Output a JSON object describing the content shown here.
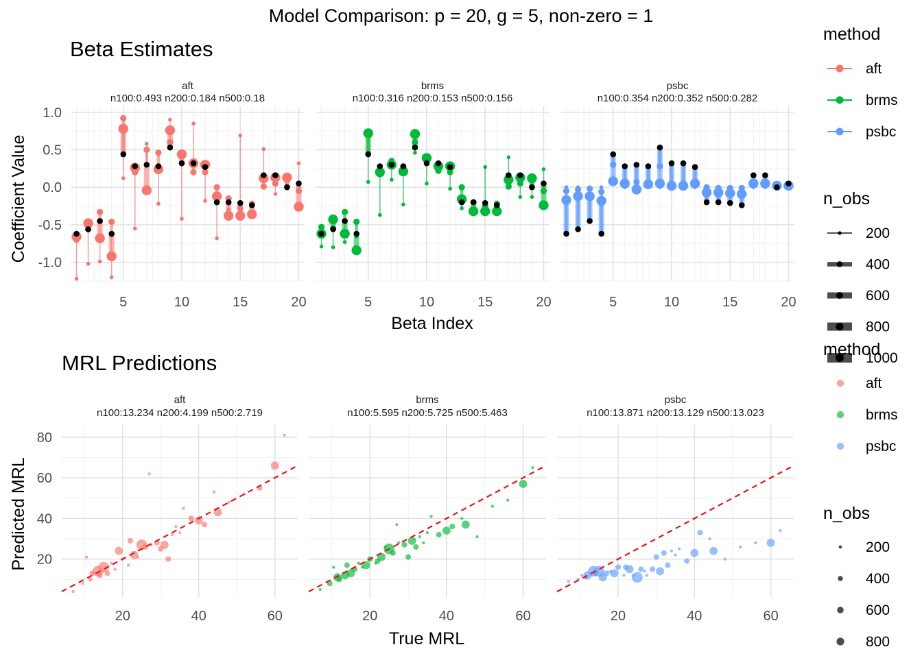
{
  "title": "Model Comparison: p = 20, g = 5, non-zero = 1",
  "colors": {
    "aft": "#F8766D",
    "brms": "#00BA38",
    "psbc": "#619CFF",
    "truth": "#000000",
    "identity": "#EE1111"
  },
  "legends": {
    "method_title": "method",
    "nobs_title": "n_obs",
    "methods": [
      "aft",
      "brms",
      "psbc"
    ],
    "nobs_line": [
      "200",
      "400",
      "600",
      "800",
      "1000"
    ],
    "nobs_point": [
      "200",
      "400",
      "600",
      "800"
    ]
  },
  "chart_data": [
    {
      "type": "scatter",
      "subtitle": "Beta Estimates",
      "xlabel": "Beta Index",
      "ylabel": "Coefficient Value",
      "xlim": [
        0.5,
        20.5
      ],
      "ylim": [
        -1.25,
        1.08
      ],
      "x_ticks": [
        "5",
        "10",
        "15",
        "20"
      ],
      "y_ticks": [
        "1.0",
        "0.5",
        "0.0",
        "-0.5",
        "-1.0"
      ],
      "grid": true,
      "true_beta": [
        -0.62,
        -0.56,
        -0.45,
        -0.62,
        0.44,
        0.28,
        0.3,
        0.28,
        0.53,
        0.32,
        0.32,
        0.27,
        -0.2,
        -0.2,
        -0.21,
        -0.24,
        0.16,
        0.16,
        0.0,
        0.05
      ],
      "panels": [
        {
          "method": "aft",
          "strip_title": "aft",
          "strip_stats": "n100:0.493 n200:0.184 n500:0.18",
          "estimates": {
            "n100": [
              -1.22,
              -1.02,
              -0.99,
              -1.2,
              0.12,
              -0.55,
              0.58,
              -0.22,
              0.9,
              -0.42,
              0.85,
              -0.18,
              -0.68,
              -0.3,
              0.69,
              -0.25,
              0.51,
              -0.09,
              0.02,
              0.32
            ],
            "n200": [
              -0.7,
              -0.56,
              -0.33,
              -0.46,
              0.92,
              0.2,
              0.5,
              0.46,
              0.6,
              0.45,
              0.2,
              0.2,
              0.0,
              -0.15,
              -0.28,
              -0.22,
              0.01,
              0.05,
              0.14,
              -0.05
            ],
            "n500": [
              -0.66,
              -0.48,
              -0.68,
              -0.92,
              0.78,
              0.26,
              -0.04,
              0.24,
              0.76,
              0.44,
              0.32,
              0.3,
              -0.12,
              -0.38,
              -0.38,
              -0.36,
              0.12,
              0.13,
              0.13,
              -0.26
            ]
          }
        },
        {
          "method": "brms",
          "strip_title": "brms",
          "strip_stats": "n100:0.316 n200:0.153 n500:0.156",
          "estimates": {
            "n100": [
              -0.79,
              -0.8,
              -0.73,
              -0.66,
              0.07,
              -0.37,
              0.1,
              -0.23,
              0.46,
              0.05,
              0.31,
              -0.02,
              -0.28,
              -0.36,
              0.27,
              -0.24,
              0.4,
              -0.13,
              -0.13,
              0.24
            ],
            "n200": [
              -0.53,
              -0.55,
              -0.33,
              -0.46,
              0.72,
              0.2,
              0.35,
              0.27,
              0.6,
              0.4,
              0.22,
              0.2,
              0.0,
              -0.2,
              -0.25,
              -0.22,
              0.01,
              0.05,
              0.14,
              -0.05
            ],
            "n500": [
              -0.62,
              -0.43,
              -0.62,
              -0.84,
              0.72,
              0.2,
              0.3,
              0.21,
              0.71,
              0.39,
              0.28,
              0.28,
              -0.16,
              -0.32,
              -0.32,
              -0.32,
              0.1,
              0.13,
              0.12,
              -0.24
            ]
          }
        },
        {
          "method": "psbc",
          "strip_title": "psbc",
          "strip_stats": "n100:0.354 n200:0.352 n500:0.282",
          "estimates": {
            "n100": [
              0.0,
              0.0,
              0.0,
              0.0,
              0.05,
              0.0,
              0.0,
              0.0,
              0.0,
              0.0,
              0.0,
              0.0,
              0.0,
              0.0,
              0.0,
              0.0,
              0.0,
              0.0,
              0.0,
              0.0
            ],
            "n200": [
              -0.05,
              -0.03,
              -0.02,
              -0.06,
              0.3,
              0.04,
              0.07,
              0.05,
              0.28,
              0.05,
              0.05,
              0.04,
              0.0,
              -0.01,
              -0.01,
              -0.01,
              0.07,
              0.05,
              0.02,
              0.04
            ],
            "n500": [
              -0.17,
              -0.12,
              -0.12,
              -0.18,
              0.08,
              0.05,
              -0.03,
              0.04,
              0.05,
              0.02,
              0.02,
              0.05,
              -0.07,
              -0.07,
              -0.08,
              -0.09,
              0.05,
              0.05,
              0.02,
              0.02
            ]
          }
        }
      ]
    },
    {
      "type": "scatter",
      "subtitle": "MRL Predictions",
      "xlabel": "True MRL",
      "ylabel": "Predicted MRL",
      "xlim": [
        4,
        66
      ],
      "ylim": [
        1,
        86
      ],
      "x_ticks": [
        "20",
        "40",
        "60"
      ],
      "y_ticks": [
        "80",
        "60",
        "40",
        "20"
      ],
      "grid": true,
      "reference_line": "y = x (dashed)",
      "true_mrl": [
        7,
        9.5,
        11.5,
        12,
        13.5,
        15,
        16,
        17,
        19,
        20,
        21.5,
        23,
        25,
        26,
        27.5,
        29,
        31,
        33,
        35,
        38,
        40,
        41.5,
        45,
        52,
        56,
        60,
        62.5,
        14,
        18,
        24,
        27,
        30,
        34,
        36,
        44,
        48,
        10.5,
        22,
        32
      ],
      "panels": [
        {
          "method": "aft",
          "strip_title": "aft",
          "strip_stats": "n100:13.234 n200:4.199 n500:2.719",
          "pred": [
            4,
            8,
            10,
            13,
            14,
            16,
            13,
            18,
            24,
            20,
            17,
            22,
            27,
            26,
            27,
            28,
            27,
            32,
            33,
            40,
            39,
            37,
            43,
            52,
            55,
            66,
            81,
            12,
            15,
            21,
            62,
            25,
            36,
            45,
            53,
            48,
            21,
            29,
            20
          ],
          "n": [
            200,
            200,
            300,
            400,
            800,
            800,
            400,
            200,
            600,
            200,
            200,
            600,
            800,
            400,
            200,
            400,
            600,
            200,
            200,
            400,
            600,
            400,
            600,
            200,
            400,
            600,
            200,
            400,
            200,
            200,
            200,
            400,
            200,
            200,
            200,
            200,
            200,
            400,
            400
          ]
        },
        {
          "method": "brms",
          "strip_title": "brms",
          "strip_stats": "n100:5.595 n200:5.725 n500:5.463",
          "pred": [
            5,
            8,
            11,
            10,
            12,
            13,
            15,
            18,
            17,
            20,
            18,
            21,
            25,
            23,
            28,
            27,
            29,
            31,
            33,
            32,
            34,
            36,
            37,
            46,
            49,
            57,
            65,
            17,
            16,
            26,
            37,
            21,
            28,
            41,
            40,
            31,
            16,
            19,
            26
          ],
          "n": [
            200,
            400,
            600,
            400,
            600,
            600,
            400,
            200,
            600,
            400,
            200,
            600,
            800,
            400,
            200,
            400,
            600,
            200,
            200,
            400,
            600,
            400,
            600,
            200,
            200,
            600,
            200,
            400,
            200,
            200,
            200,
            400,
            200,
            200,
            200,
            200,
            200,
            400,
            400
          ]
        },
        {
          "method": "psbc",
          "strip_title": "psbc",
          "strip_stats": "n100:13.871 n200:13.129 n500:13.023",
          "pred": [
            9,
            10,
            11,
            12,
            14,
            14,
            11,
            13,
            13,
            16,
            12,
            15,
            11,
            15,
            12,
            15,
            14,
            17,
            22,
            19,
            23,
            33,
            24,
            26,
            28,
            28,
            34,
            13,
            14,
            12,
            14,
            21,
            24,
            25,
            30,
            20,
            12,
            16,
            23
          ],
          "n": [
            200,
            200,
            300,
            600,
            800,
            800,
            600,
            400,
            600,
            400,
            200,
            600,
            800,
            400,
            200,
            400,
            600,
            400,
            200,
            400,
            600,
            400,
            600,
            200,
            200,
            600,
            200,
            400,
            200,
            200,
            200,
            400,
            200,
            200,
            200,
            200,
            200,
            400,
            400
          ]
        }
      ]
    }
  ]
}
